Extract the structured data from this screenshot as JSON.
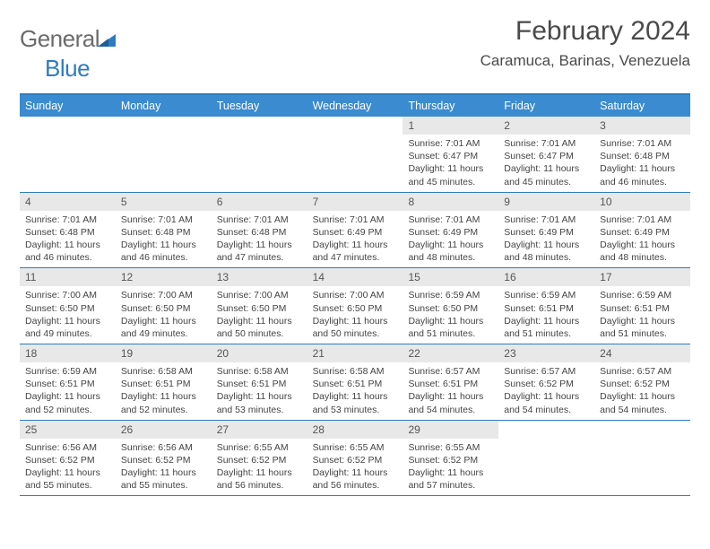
{
  "logo": {
    "word1": "General",
    "word2": "Blue"
  },
  "title": "February 2024",
  "location": "Caramuca, Barinas, Venezuela",
  "colors": {
    "header_bg": "#3a8bd0",
    "accent_border": "#2e7cc0",
    "daynum_bg": "#e8e8e8",
    "text": "#3a3a3a"
  },
  "weekdays": [
    "Sunday",
    "Monday",
    "Tuesday",
    "Wednesday",
    "Thursday",
    "Friday",
    "Saturday"
  ],
  "weeks": [
    [
      {
        "n": "",
        "lines": []
      },
      {
        "n": "",
        "lines": []
      },
      {
        "n": "",
        "lines": []
      },
      {
        "n": "",
        "lines": []
      },
      {
        "n": "1",
        "lines": [
          "Sunrise: 7:01 AM",
          "Sunset: 6:47 PM",
          "Daylight: 11 hours and 45 minutes."
        ]
      },
      {
        "n": "2",
        "lines": [
          "Sunrise: 7:01 AM",
          "Sunset: 6:47 PM",
          "Daylight: 11 hours and 45 minutes."
        ]
      },
      {
        "n": "3",
        "lines": [
          "Sunrise: 7:01 AM",
          "Sunset: 6:48 PM",
          "Daylight: 11 hours and 46 minutes."
        ]
      }
    ],
    [
      {
        "n": "4",
        "lines": [
          "Sunrise: 7:01 AM",
          "Sunset: 6:48 PM",
          "Daylight: 11 hours and 46 minutes."
        ]
      },
      {
        "n": "5",
        "lines": [
          "Sunrise: 7:01 AM",
          "Sunset: 6:48 PM",
          "Daylight: 11 hours and 46 minutes."
        ]
      },
      {
        "n": "6",
        "lines": [
          "Sunrise: 7:01 AM",
          "Sunset: 6:48 PM",
          "Daylight: 11 hours and 47 minutes."
        ]
      },
      {
        "n": "7",
        "lines": [
          "Sunrise: 7:01 AM",
          "Sunset: 6:49 PM",
          "Daylight: 11 hours and 47 minutes."
        ]
      },
      {
        "n": "8",
        "lines": [
          "Sunrise: 7:01 AM",
          "Sunset: 6:49 PM",
          "Daylight: 11 hours and 48 minutes."
        ]
      },
      {
        "n": "9",
        "lines": [
          "Sunrise: 7:01 AM",
          "Sunset: 6:49 PM",
          "Daylight: 11 hours and 48 minutes."
        ]
      },
      {
        "n": "10",
        "lines": [
          "Sunrise: 7:01 AM",
          "Sunset: 6:49 PM",
          "Daylight: 11 hours and 48 minutes."
        ]
      }
    ],
    [
      {
        "n": "11",
        "lines": [
          "Sunrise: 7:00 AM",
          "Sunset: 6:50 PM",
          "Daylight: 11 hours and 49 minutes."
        ]
      },
      {
        "n": "12",
        "lines": [
          "Sunrise: 7:00 AM",
          "Sunset: 6:50 PM",
          "Daylight: 11 hours and 49 minutes."
        ]
      },
      {
        "n": "13",
        "lines": [
          "Sunrise: 7:00 AM",
          "Sunset: 6:50 PM",
          "Daylight: 11 hours and 50 minutes."
        ]
      },
      {
        "n": "14",
        "lines": [
          "Sunrise: 7:00 AM",
          "Sunset: 6:50 PM",
          "Daylight: 11 hours and 50 minutes."
        ]
      },
      {
        "n": "15",
        "lines": [
          "Sunrise: 6:59 AM",
          "Sunset: 6:50 PM",
          "Daylight: 11 hours and 51 minutes."
        ]
      },
      {
        "n": "16",
        "lines": [
          "Sunrise: 6:59 AM",
          "Sunset: 6:51 PM",
          "Daylight: 11 hours and 51 minutes."
        ]
      },
      {
        "n": "17",
        "lines": [
          "Sunrise: 6:59 AM",
          "Sunset: 6:51 PM",
          "Daylight: 11 hours and 51 minutes."
        ]
      }
    ],
    [
      {
        "n": "18",
        "lines": [
          "Sunrise: 6:59 AM",
          "Sunset: 6:51 PM",
          "Daylight: 11 hours and 52 minutes."
        ]
      },
      {
        "n": "19",
        "lines": [
          "Sunrise: 6:58 AM",
          "Sunset: 6:51 PM",
          "Daylight: 11 hours and 52 minutes."
        ]
      },
      {
        "n": "20",
        "lines": [
          "Sunrise: 6:58 AM",
          "Sunset: 6:51 PM",
          "Daylight: 11 hours and 53 minutes."
        ]
      },
      {
        "n": "21",
        "lines": [
          "Sunrise: 6:58 AM",
          "Sunset: 6:51 PM",
          "Daylight: 11 hours and 53 minutes."
        ]
      },
      {
        "n": "22",
        "lines": [
          "Sunrise: 6:57 AM",
          "Sunset: 6:51 PM",
          "Daylight: 11 hours and 54 minutes."
        ]
      },
      {
        "n": "23",
        "lines": [
          "Sunrise: 6:57 AM",
          "Sunset: 6:52 PM",
          "Daylight: 11 hours and 54 minutes."
        ]
      },
      {
        "n": "24",
        "lines": [
          "Sunrise: 6:57 AM",
          "Sunset: 6:52 PM",
          "Daylight: 11 hours and 54 minutes."
        ]
      }
    ],
    [
      {
        "n": "25",
        "lines": [
          "Sunrise: 6:56 AM",
          "Sunset: 6:52 PM",
          "Daylight: 11 hours and 55 minutes."
        ]
      },
      {
        "n": "26",
        "lines": [
          "Sunrise: 6:56 AM",
          "Sunset: 6:52 PM",
          "Daylight: 11 hours and 55 minutes."
        ]
      },
      {
        "n": "27",
        "lines": [
          "Sunrise: 6:55 AM",
          "Sunset: 6:52 PM",
          "Daylight: 11 hours and 56 minutes."
        ]
      },
      {
        "n": "28",
        "lines": [
          "Sunrise: 6:55 AM",
          "Sunset: 6:52 PM",
          "Daylight: 11 hours and 56 minutes."
        ]
      },
      {
        "n": "29",
        "lines": [
          "Sunrise: 6:55 AM",
          "Sunset: 6:52 PM",
          "Daylight: 11 hours and 57 minutes."
        ]
      },
      {
        "n": "",
        "lines": []
      },
      {
        "n": "",
        "lines": []
      }
    ]
  ]
}
